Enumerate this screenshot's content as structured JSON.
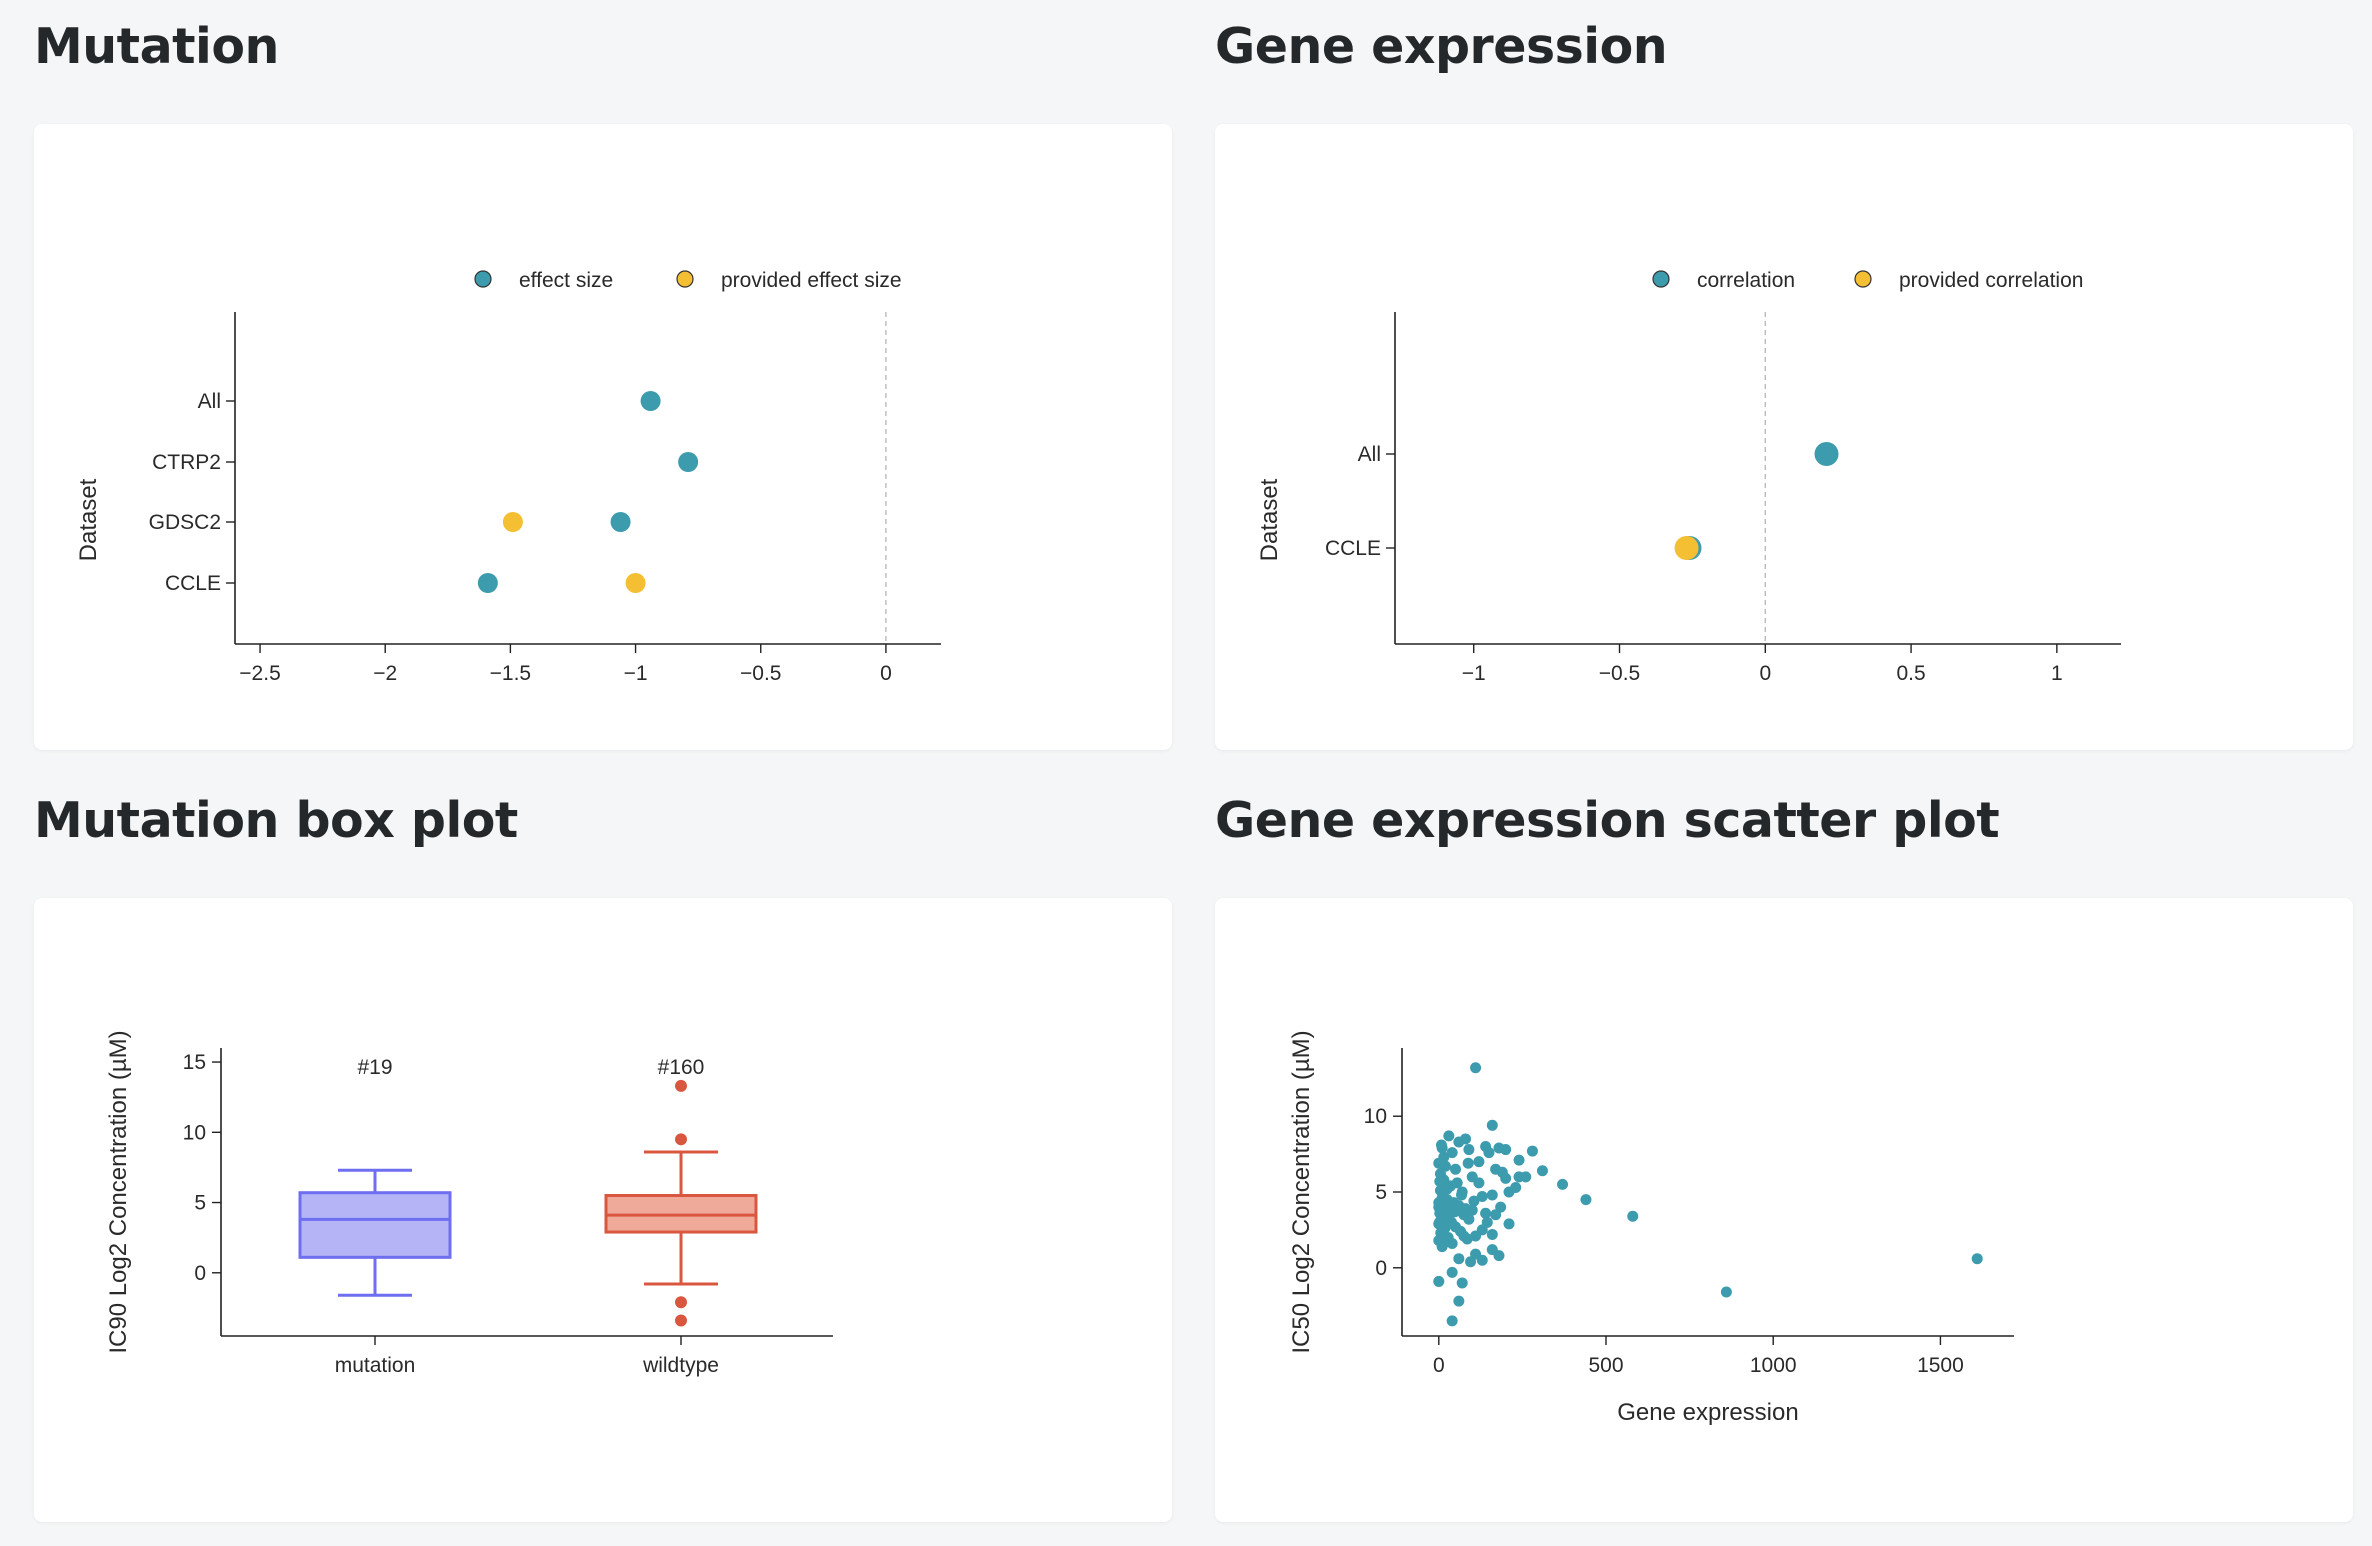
{
  "sections": {
    "mutation": "Mutation",
    "gene_expression": "Gene expression",
    "mutation_box": "Mutation box plot",
    "gene_scatter": "Gene expression scatter plot"
  },
  "colors": {
    "teal": "#3d9bae",
    "yellow": "#f5bf34",
    "box_mutation": "#6e6ef0",
    "box_mutation_fill": "#b4b4f7",
    "box_wildtype": "#d9573e",
    "box_wildtype_fill": "#f0aa9a"
  },
  "chart_data": [
    {
      "id": "mutation",
      "type": "scatter",
      "title": "",
      "xlabel": "",
      "ylabel": "Dataset",
      "xlim": [
        -2.6,
        0.22
      ],
      "xticks": [
        -2.5,
        -2,
        -1.5,
        -1,
        -0.5,
        0
      ],
      "xtick_labels": [
        "−2.5",
        "−2",
        "−1.5",
        "−1",
        "−0.5",
        "0"
      ],
      "categories": [
        "All",
        "CTRP2",
        "GDSC2",
        "CCLE"
      ],
      "legend": [
        "effect size",
        "provided effect size"
      ],
      "legend_position": "top",
      "series": [
        {
          "name": "effect size",
          "color": "teal",
          "points": [
            {
              "category": "All",
              "x": -0.94
            },
            {
              "category": "CTRP2",
              "x": -0.79
            },
            {
              "category": "GDSC2",
              "x": -1.06
            },
            {
              "category": "CCLE",
              "x": -1.59
            }
          ]
        },
        {
          "name": "provided effect size",
          "color": "yellow",
          "points": [
            {
              "category": "GDSC2",
              "x": -1.49
            },
            {
              "category": "CCLE",
              "x": -1.0
            }
          ]
        }
      ],
      "reference_line_x": 0
    },
    {
      "id": "gene_expression",
      "type": "scatter",
      "title": "",
      "xlabel": "",
      "ylabel": "Dataset",
      "xlim": [
        -1.27,
        1.22
      ],
      "xticks": [
        -1,
        -0.5,
        0,
        0.5,
        1
      ],
      "xtick_labels": [
        "−1",
        "−0.5",
        "0",
        "0.5",
        "1"
      ],
      "categories": [
        "All",
        "CCLE"
      ],
      "legend": [
        "correlation",
        "provided correlation"
      ],
      "legend_position": "top",
      "series": [
        {
          "name": "correlation",
          "color": "teal",
          "points": [
            {
              "category": "All",
              "x": 0.21
            },
            {
              "category": "CCLE",
              "x": -0.26
            }
          ]
        },
        {
          "name": "provided correlation",
          "color": "yellow",
          "points": [
            {
              "category": "CCLE",
              "x": -0.27
            }
          ]
        }
      ],
      "reference_line_x": 0
    },
    {
      "id": "mutation_box",
      "type": "box",
      "title": "",
      "xlabel": "",
      "ylabel": "IC90 Log2 Concentration (µM)",
      "ylim": [
        -4.5,
        16
      ],
      "yticks": [
        0,
        5,
        10,
        15
      ],
      "boxes": [
        {
          "category": "mutation",
          "count_label": "#19",
          "color": "box_mutation",
          "fill": "box_mutation_fill",
          "min": -1.6,
          "q1": 1.1,
          "median": 3.8,
          "q3": 5.7,
          "max": 7.3,
          "outliers": []
        },
        {
          "category": "wildtype",
          "count_label": "#160",
          "color": "box_wildtype",
          "fill": "box_wildtype_fill",
          "min": -0.8,
          "q1": 2.9,
          "median": 4.1,
          "q3": 5.5,
          "max": 8.6,
          "outliers": [
            13.3,
            9.5,
            -2.1,
            -3.4
          ]
        }
      ]
    },
    {
      "id": "gene_scatter",
      "type": "scatter",
      "title": "",
      "xlabel": "Gene expression",
      "ylabel": "IC50 Log2 Concentration (µM)",
      "xlim": [
        -110,
        1720
      ],
      "ylim": [
        -4.5,
        14.5
      ],
      "xticks": [
        0,
        500,
        1000,
        1500
      ],
      "yticks": [
        0,
        5,
        10
      ],
      "color": "teal",
      "points": [
        [
          110,
          13.2
        ],
        [
          160,
          9.4
        ],
        [
          80,
          8.5
        ],
        [
          30,
          8.7
        ],
        [
          60,
          8.3
        ],
        [
          10,
          7.9
        ],
        [
          40,
          7.6
        ],
        [
          90,
          7.8
        ],
        [
          120,
          7.0
        ],
        [
          150,
          7.6
        ],
        [
          180,
          7.9
        ],
        [
          200,
          7.8
        ],
        [
          240,
          7.1
        ],
        [
          280,
          7.7
        ],
        [
          310,
          6.4
        ],
        [
          260,
          6.0
        ],
        [
          230,
          5.3
        ],
        [
          210,
          5.0
        ],
        [
          240,
          6.0
        ],
        [
          200,
          5.9
        ],
        [
          190,
          6.3
        ],
        [
          170,
          6.5
        ],
        [
          100,
          6.0
        ],
        [
          50,
          6.5
        ],
        [
          20,
          6.7
        ],
        [
          0,
          6.9
        ],
        [
          5,
          6.2
        ],
        [
          15,
          5.8
        ],
        [
          35,
          5.4
        ],
        [
          70,
          5.0
        ],
        [
          130,
          4.7
        ],
        [
          160,
          4.8
        ],
        [
          5,
          5.1
        ],
        [
          10,
          4.6
        ],
        [
          25,
          4.5
        ],
        [
          45,
          4.3
        ],
        [
          60,
          4.1
        ],
        [
          80,
          3.9
        ],
        [
          100,
          3.8
        ],
        [
          140,
          3.6
        ],
        [
          170,
          3.5
        ],
        [
          210,
          2.9
        ],
        [
          130,
          2.5
        ],
        [
          160,
          2.2
        ],
        [
          110,
          2.1
        ],
        [
          90,
          3.2
        ],
        [
          0,
          4.0
        ],
        [
          3,
          3.6
        ],
        [
          8,
          3.2
        ],
        [
          12,
          2.8
        ],
        [
          18,
          2.6
        ],
        [
          22,
          3.9
        ],
        [
          30,
          3.4
        ],
        [
          38,
          3.0
        ],
        [
          50,
          2.7
        ],
        [
          65,
          2.4
        ],
        [
          75,
          2.1
        ],
        [
          85,
          1.9
        ],
        [
          40,
          1.6
        ],
        [
          20,
          1.7
        ],
        [
          6,
          2.3
        ],
        [
          0,
          2.9
        ],
        [
          0,
          1.8
        ],
        [
          10,
          1.4
        ],
        [
          160,
          1.2
        ],
        [
          180,
          0.8
        ],
        [
          110,
          0.9
        ],
        [
          95,
          0.4
        ],
        [
          130,
          0.5
        ],
        [
          60,
          0.6
        ],
        [
          40,
          -0.3
        ],
        [
          0,
          -0.9
        ],
        [
          70,
          -1.0
        ],
        [
          60,
          -2.2
        ],
        [
          40,
          -3.5
        ],
        [
          370,
          5.5
        ],
        [
          440,
          4.5
        ],
        [
          580,
          3.4
        ],
        [
          860,
          -1.6
        ],
        [
          1610,
          0.6
        ],
        [
          55,
          5.6
        ],
        [
          25,
          5.2
        ],
        [
          105,
          4.4
        ],
        [
          75,
          3.5
        ],
        [
          145,
          3.0
        ],
        [
          185,
          4.0
        ],
        [
          120,
          5.6
        ],
        [
          15,
          7.3
        ],
        [
          3,
          5.7
        ],
        [
          0,
          4.3
        ],
        [
          2,
          3.0
        ],
        [
          28,
          2.0
        ],
        [
          48,
          3.7
        ],
        [
          68,
          4.8
        ],
        [
          88,
          6.9
        ],
        [
          140,
          8.0
        ],
        [
          8,
          8.1
        ]
      ]
    }
  ]
}
